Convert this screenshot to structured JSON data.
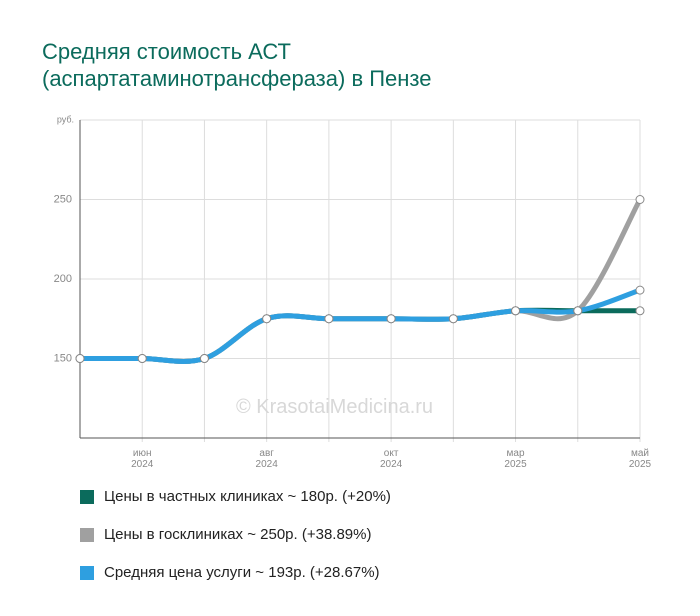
{
  "chart_data": {
    "type": "line",
    "title": "Средняя стоимость АСТ (аспартатаминотрансфераза) в Пензе",
    "y_label": "руб.",
    "watermark": "© KrasotaiMedicina.ru",
    "categories": [
      null,
      "июн 2024",
      null,
      "авг 2024",
      null,
      "окт 2024",
      null,
      "мар 2025",
      null,
      "май 2025"
    ],
    "ylim": [
      100,
      300
    ],
    "yticks": [
      150,
      200,
      250
    ],
    "grid": true,
    "series": [
      {
        "name": "Цены в частных клиниках ~ 180р. (+20%)",
        "color": "#0b6b5c",
        "values": [
          150,
          150,
          150,
          175,
          175,
          175,
          175,
          180,
          180,
          180
        ]
      },
      {
        "name": "Цены в госклиниках ~ 250р. (+38.89%)",
        "color": "#a0a0a0",
        "values": [
          150,
          150,
          150,
          175,
          175,
          175,
          175,
          180,
          180,
          250
        ]
      },
      {
        "name": "Средняя цена услуги ~ 193р. (+28.67%)",
        "color": "#2e9fe0",
        "values": [
          150,
          150,
          150,
          175,
          175,
          175,
          175,
          180,
          180,
          193
        ]
      }
    ]
  }
}
